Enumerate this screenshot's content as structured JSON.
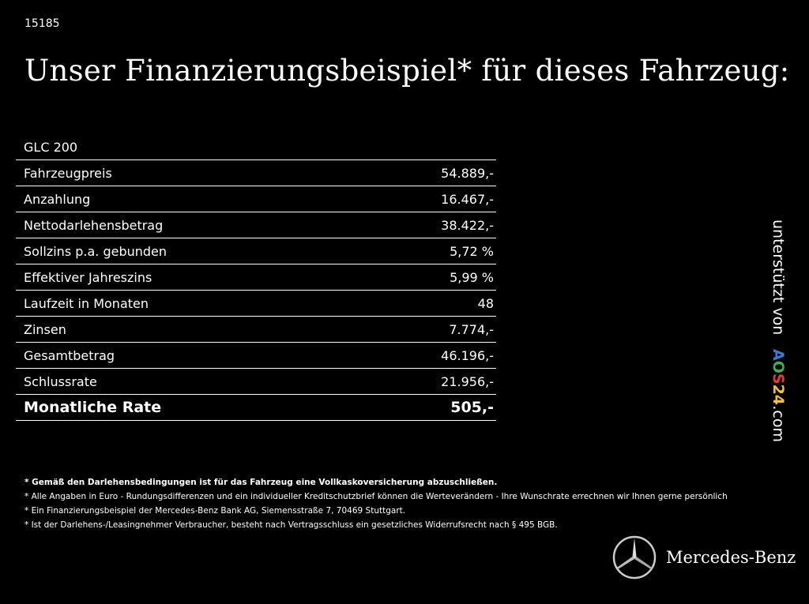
{
  "code": "15185",
  "title": "Unser Finanzierungsbeispiel* für dieses Fahrzeug:",
  "model": "GLC 200",
  "rows": [
    {
      "label": "Fahrzeugpreis",
      "value": "54.889,-"
    },
    {
      "label": "Anzahlung",
      "value": "16.467,-"
    },
    {
      "label": "Nettodarlehensbetrag",
      "value": "38.422,-"
    },
    {
      "label": "Sollzins p.a. gebunden",
      "value": "5,72 %"
    },
    {
      "label": "Effektiver Jahreszins",
      "value": "5,99 %"
    },
    {
      "label": "Laufzeit in Monaten",
      "value": "48"
    },
    {
      "label": "Zinsen",
      "value": "7.774,-"
    },
    {
      "label": "Gesamtbetrag",
      "value": "46.196,-"
    },
    {
      "label": "Schlussrate",
      "value": "21.956,-"
    }
  ],
  "total": {
    "label": "Monatliche Rate",
    "value": "505,-"
  },
  "notes": [
    "* Gemäß den Darlehensbedingungen ist für das Fahrzeug eine Vollkaskoversicherung abzuschließen.",
    "* Alle Angaben in Euro - Rundungsdifferenzen und ein individueller Kreditschutzbrief können die Werteverändern - Ihre Wunschrate errechnen wir Ihnen gerne persönlich",
    "* Ein Finanzierungsbeispiel der Mercedes-Benz Bank AG, Siemensstraße 7, 70469 Stuttgart.",
    "* Ist der Darlehens-/Leasingnehmer Verbraucher, besteht nach Vertragsschluss ein gesetzliches Widerrufsrecht nach § 495 BGB."
  ],
  "sponsor": {
    "prefix": "unterstützt von",
    "letters": [
      {
        "char": "A",
        "color": "#3a7bd5"
      },
      {
        "char": "O",
        "color": "#3cb44b"
      },
      {
        "char": "S",
        "color": "#e53935"
      },
      {
        "char": "2",
        "color": "#f2c12e"
      },
      {
        "char": "4",
        "color": "#f2c12e"
      }
    ],
    "suffix": ".com"
  },
  "logo": {
    "name": "Mercedes-Benz",
    "icon": "mercedes-star-icon"
  }
}
